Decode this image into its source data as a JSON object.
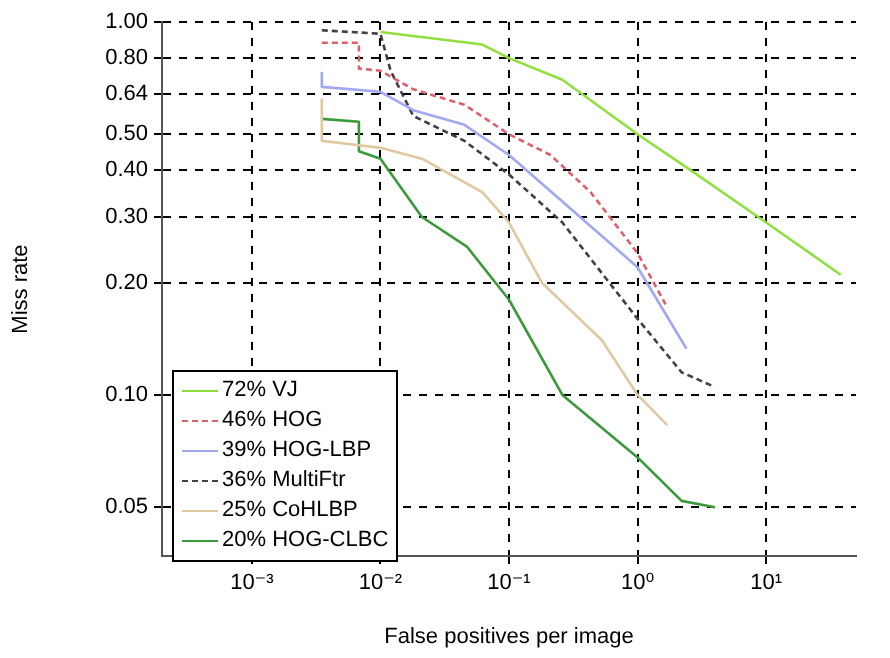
{
  "chart_data": {
    "type": "line",
    "xlabel": "False positives per image",
    "ylabel": "Miss rate",
    "log": "xy",
    "grid": true,
    "legend": "bottom left",
    "marker": "none",
    "xlim": [
      0.0002,
      50
    ],
    "ylim": [
      0.037,
      1
    ],
    "xticks": [
      {
        "value": 0.001,
        "label": "10⁻³"
      },
      {
        "value": 0.01,
        "label": "10⁻²"
      },
      {
        "value": 0.1,
        "label": "10⁻¹"
      },
      {
        "value": 1,
        "label": "10⁰"
      },
      {
        "value": 10,
        "label": "10¹"
      }
    ],
    "yticks": [
      {
        "value": 0.05,
        "label": "0.05"
      },
      {
        "value": 0.1,
        "label": "0.10"
      },
      {
        "value": 0.2,
        "label": "0.20"
      },
      {
        "value": 0.3,
        "label": "0.30"
      },
      {
        "value": 0.4,
        "label": "0.40"
      },
      {
        "value": 0.5,
        "label": "0.50"
      },
      {
        "value": 0.64,
        "label": "0.64"
      },
      {
        "value": 0.8,
        "label": "0.80"
      },
      {
        "value": 1,
        "label": "1.00"
      }
    ],
    "series": [
      {
        "name": "72% VJ",
        "color": "#8fdf3f",
        "line_style": "solid",
        "x": [
          0.01,
          0.062,
          0.1,
          0.26,
          1,
          2.6,
          10,
          38
        ],
        "values": [
          0.94,
          0.87,
          0.8,
          0.7,
          0.5,
          0.4,
          0.29,
          0.21
        ]
      },
      {
        "name": "46% HOG",
        "color": "#e0606a",
        "line_style": "dashed",
        "x": [
          0.0035,
          0.0068,
          0.0068,
          0.01,
          0.018,
          0.045,
          0.1,
          0.21,
          0.43,
          1,
          1.65
        ],
        "values": [
          0.88,
          0.88,
          0.75,
          0.74,
          0.66,
          0.6,
          0.5,
          0.44,
          0.35,
          0.24,
          0.175
        ]
      },
      {
        "name": "39% HOG-LBP",
        "color": "#9fa8f0",
        "line_style": "solid",
        "x": [
          0.0035,
          0.0035,
          0.01,
          0.018,
          0.045,
          0.1,
          0.26,
          1,
          2.4
        ],
        "values": [
          0.73,
          0.67,
          0.65,
          0.58,
          0.53,
          0.44,
          0.33,
          0.22,
          0.133
        ]
      },
      {
        "name": "36% MultiFtr",
        "color": "#404040",
        "line_style": "dashed",
        "x": [
          0.0035,
          0.01,
          0.012,
          0.018,
          0.045,
          0.1,
          0.26,
          1,
          2.2,
          4
        ],
        "values": [
          0.95,
          0.93,
          0.74,
          0.56,
          0.48,
          0.39,
          0.29,
          0.16,
          0.115,
          0.105
        ]
      },
      {
        "name": "25% CoHLBP",
        "color": "#e0c8a0",
        "line_style": "solid",
        "x": [
          0.0035,
          0.0035,
          0.01,
          0.021,
          0.062,
          0.1,
          0.18,
          0.53,
          1,
          1.7
        ],
        "values": [
          0.62,
          0.48,
          0.46,
          0.43,
          0.35,
          0.29,
          0.2,
          0.14,
          0.1,
          0.083
        ]
      },
      {
        "name": "20% HOG-CLBC",
        "color": "#3a9a3a",
        "line_style": "solid",
        "x": [
          0.0035,
          0.0068,
          0.0068,
          0.01,
          0.021,
          0.047,
          0.1,
          0.26,
          1,
          2.2,
          4
        ],
        "values": [
          0.55,
          0.54,
          0.45,
          0.43,
          0.3,
          0.25,
          0.18,
          0.1,
          0.068,
          0.052,
          0.05
        ]
      }
    ]
  }
}
